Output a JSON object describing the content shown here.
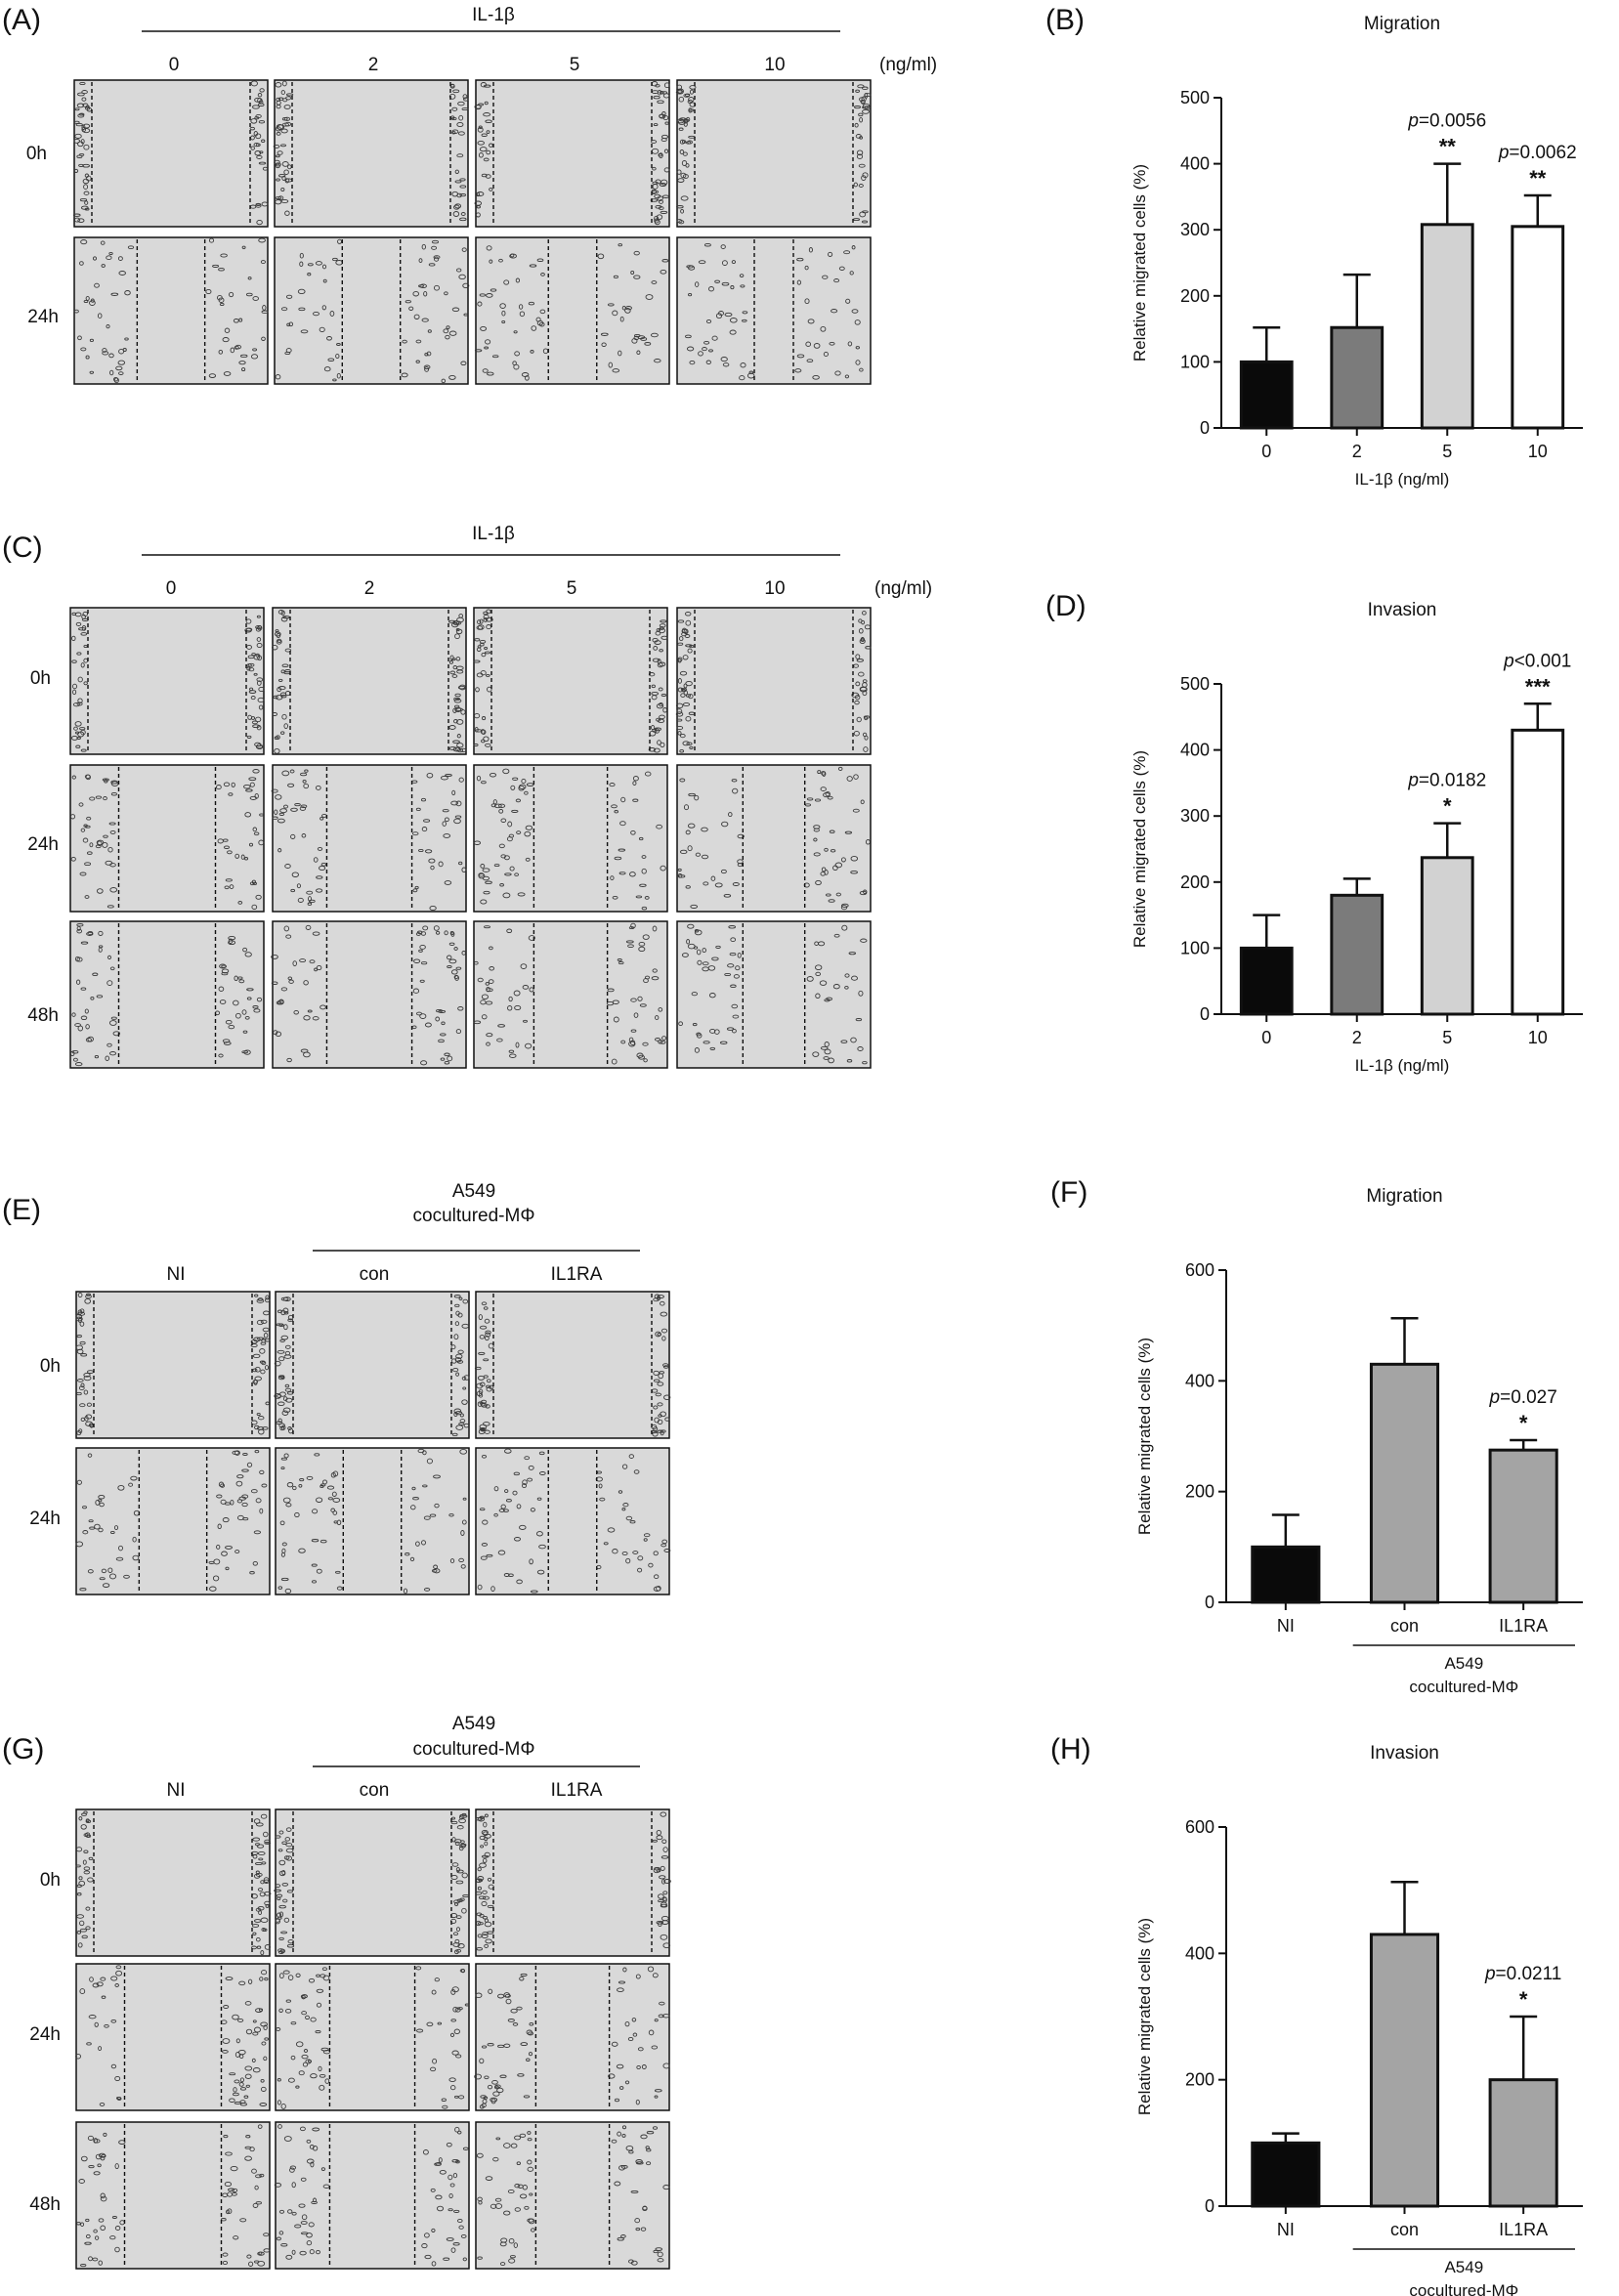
{
  "panels": {
    "A": {
      "label": "(A)",
      "group_header": "IL-1β",
      "columns": [
        "0",
        "2",
        "5",
        "10"
      ],
      "unit": "(ng/ml)",
      "rows": [
        "0h",
        "24h"
      ]
    },
    "C": {
      "label": "(C)",
      "group_header": "IL-1β",
      "columns": [
        "0",
        "2",
        "5",
        "10"
      ],
      "unit": "(ng/ml)",
      "rows": [
        "0h",
        "24h",
        "48h"
      ]
    },
    "E": {
      "label": "(E)",
      "group_header_line1": "A549",
      "group_header_line2": "cocultured-MΦ",
      "columns": [
        "NI",
        "con",
        "IL1RA"
      ],
      "rows": [
        "0h",
        "24h"
      ]
    },
    "G": {
      "label": "(G)",
      "group_header_line1": "A549",
      "group_header_line2": "cocultured-MΦ",
      "columns": [
        "NI",
        "con",
        "IL1RA"
      ],
      "rows": [
        "0h",
        "24h",
        "48h"
      ]
    }
  },
  "colors": {
    "black": "#0a0a0a",
    "dark_gray": "#7b7b7b",
    "light_gray": "#d2d2d2",
    "white": "#ffffff",
    "mid_gray": "#a4a4a4",
    "image_bg": "#d9d9d9",
    "cell_edge": "#3a3a3a"
  },
  "chart_data": [
    {
      "panel_label": "(B)",
      "type": "bar",
      "title": "Migration",
      "categories": [
        "0",
        "2",
        "5",
        "10"
      ],
      "values": [
        100,
        152,
        308,
        305
      ],
      "errors": [
        52,
        80,
        92,
        47
      ],
      "bar_colors": [
        "#0a0a0a",
        "#7b7b7b",
        "#d2d2d2",
        "#ffffff"
      ],
      "xlabel": "IL-1β (ng/ml)",
      "ylabel": "Relative migrated cells (%)",
      "ylim": [
        0,
        500
      ],
      "yticks": [
        "0",
        "100",
        "200",
        "300",
        "400",
        "500"
      ],
      "annotations": [
        {
          "category_index": 2,
          "p_prefix": "p",
          "p_value": "=0.0056",
          "stars": "**"
        },
        {
          "category_index": 3,
          "p_prefix": "p",
          "p_value": "=0.0062",
          "stars": "**"
        }
      ]
    },
    {
      "panel_label": "(D)",
      "type": "bar",
      "title": "Invasion",
      "categories": [
        "0",
        "2",
        "5",
        "10"
      ],
      "values": [
        100,
        180,
        237,
        430
      ],
      "errors": [
        50,
        25,
        52,
        40
      ],
      "bar_colors": [
        "#0a0a0a",
        "#7b7b7b",
        "#d2d2d2",
        "#ffffff"
      ],
      "xlabel": "IL-1β (ng/ml)",
      "ylabel": "Relative migrated cells (%)",
      "ylim": [
        0,
        500
      ],
      "yticks": [
        "0",
        "100",
        "200",
        "300",
        "400",
        "500"
      ],
      "annotations": [
        {
          "category_index": 2,
          "p_prefix": "p",
          "p_value": "=0.0182",
          "stars": "*"
        },
        {
          "category_index": 3,
          "p_prefix": "p",
          "p_value": "<0.001",
          "stars": "***"
        }
      ]
    },
    {
      "panel_label": "(F)",
      "type": "bar",
      "title": "Migration",
      "categories": [
        "NI",
        "con",
        "IL1RA"
      ],
      "values": [
        100,
        430,
        275
      ],
      "errors": [
        58,
        83,
        18
      ],
      "bar_colors": [
        "#0a0a0a",
        "#a4a4a4",
        "#a4a4a4"
      ],
      "xlabel": "",
      "group_label_line1": "A549",
      "group_label_line2": "cocultured-MΦ",
      "ylabel": "Relative migrated cells (%)",
      "ylim": [
        0,
        600
      ],
      "yticks": [
        "0",
        "200",
        "400",
        "600"
      ],
      "annotations": [
        {
          "category_index": 2,
          "p_prefix": "p",
          "p_value": "=0.027",
          "stars": "*"
        }
      ]
    },
    {
      "panel_label": "(H)",
      "type": "bar",
      "title": "Invasion",
      "categories": [
        "NI",
        "con",
        "IL1RA"
      ],
      "values": [
        100,
        430,
        200
      ],
      "errors": [
        15,
        83,
        100
      ],
      "bar_colors": [
        "#0a0a0a",
        "#a4a4a4",
        "#a4a4a4"
      ],
      "xlabel": "",
      "group_label_line1": "A549",
      "group_label_line2": "cocultured-MΦ",
      "ylabel": "Relative migrated cells (%)",
      "ylim": [
        0,
        600
      ],
      "yticks": [
        "0",
        "200",
        "400",
        "600"
      ],
      "annotations": [
        {
          "category_index": 2,
          "p_prefix": "p",
          "p_value": "=0.0211",
          "stars": "*"
        }
      ]
    }
  ]
}
